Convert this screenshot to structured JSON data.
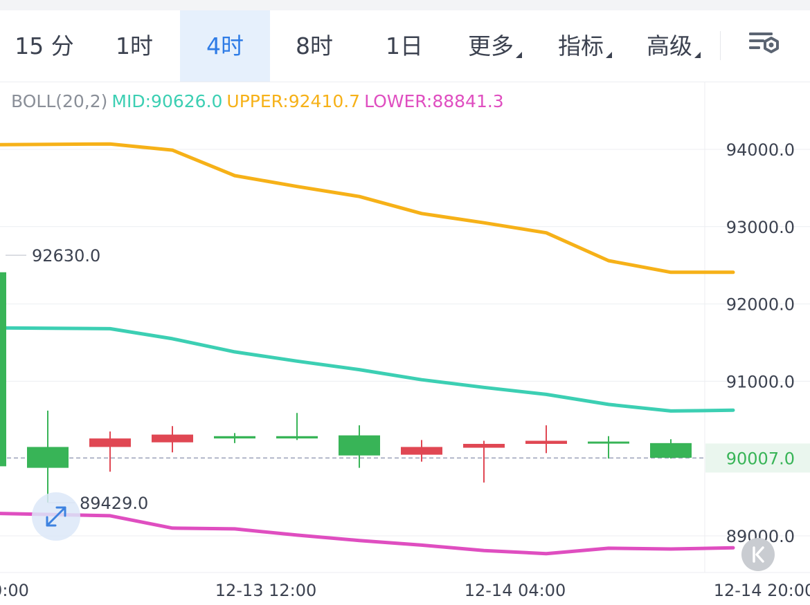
{
  "toolbar": {
    "tabs": [
      {
        "label": "15 分",
        "active": false,
        "dropdown": false
      },
      {
        "label": "1时",
        "active": false,
        "dropdown": false
      },
      {
        "label": "4时",
        "active": true,
        "dropdown": false
      },
      {
        "label": "8时",
        "active": false,
        "dropdown": false
      },
      {
        "label": "1日",
        "active": false,
        "dropdown": false
      },
      {
        "label": "更多",
        "active": false,
        "dropdown": true
      },
      {
        "label": "指标",
        "active": false,
        "dropdown": true
      },
      {
        "label": "高级",
        "active": false,
        "dropdown": true
      }
    ],
    "settings_icon": "chart-settings-icon"
  },
  "indicator": {
    "name": "BOLL(20,2)",
    "mid": "MID:90626.0",
    "upper": "UPPER:92410.7",
    "lower": "LOWER:88841.3"
  },
  "colors": {
    "up": "#e04753",
    "down": "#38b457",
    "mid": "#3ccfb3",
    "upper": "#f6b118",
    "lower": "#df4ec0",
    "grid": "#eceef1",
    "axis_text": "#3c4250",
    "current_price": "#38b457",
    "active_tab": "#2f7ce6"
  },
  "chart_data": {
    "type": "candlestick",
    "y_ticks": [
      "94000.0",
      "93000.0",
      "92000.0",
      "91000.0",
      "89000.0"
    ],
    "ylim": [
      88550,
      95000
    ],
    "x_labels": [
      {
        "slot": -0.6,
        "text": "0:00"
      },
      {
        "slot": 3.5,
        "text": "12-13 12:00"
      },
      {
        "slot": 7.5,
        "text": "12-14 04:00"
      },
      {
        "slot": 11.5,
        "text": "12-14 20:00"
      }
    ],
    "current_price": {
      "value": 90007.0,
      "label": "90007.0"
    },
    "high_marker": {
      "slot": -0.6,
      "value": 92630.0,
      "label": "92630.0"
    },
    "low_marker": {
      "slot": 0,
      "value": 89429.0,
      "label": "89429.0"
    },
    "partial_candle": {
      "slot": -0.95,
      "open": 92410,
      "close": 89900,
      "high": 92630,
      "low": 89880
    },
    "candles": [
      {
        "o": 90150,
        "h": 90620,
        "l": 89430,
        "c": 89880
      },
      {
        "o": 90150,
        "h": 90350,
        "l": 89830,
        "c": 90260
      },
      {
        "o": 90210,
        "h": 90420,
        "l": 90080,
        "c": 90310
      },
      {
        "o": 90290,
        "h": 90330,
        "l": 90200,
        "c": 90260
      },
      {
        "o": 90290,
        "h": 90590,
        "l": 90240,
        "c": 90260
      },
      {
        "o": 90300,
        "h": 90430,
        "l": 89880,
        "c": 90040
      },
      {
        "o": 90050,
        "h": 90240,
        "l": 89960,
        "c": 90150
      },
      {
        "o": 90140,
        "h": 90230,
        "l": 89690,
        "c": 90190
      },
      {
        "o": 90190,
        "h": 90430,
        "l": 90070,
        "c": 90230
      },
      {
        "o": 90220,
        "h": 90290,
        "l": 90000,
        "c": 90200
      },
      {
        "o": 90200,
        "h": 90250,
        "l": 90000,
        "c": 90010
      }
    ],
    "boll": {
      "upper": [
        94060,
        94070,
        93990,
        93660,
        93520,
        93390,
        93170,
        93050,
        92920,
        92560,
        92410,
        92410
      ],
      "mid": [
        91690,
        91680,
        91550,
        91380,
        91260,
        91150,
        91020,
        90920,
        90830,
        90700,
        90615,
        90625
      ],
      "lower": [
        89290,
        89260,
        89100,
        89090,
        89010,
        88940,
        88880,
        88810,
        88770,
        88840,
        88830,
        88845
      ]
    }
  }
}
